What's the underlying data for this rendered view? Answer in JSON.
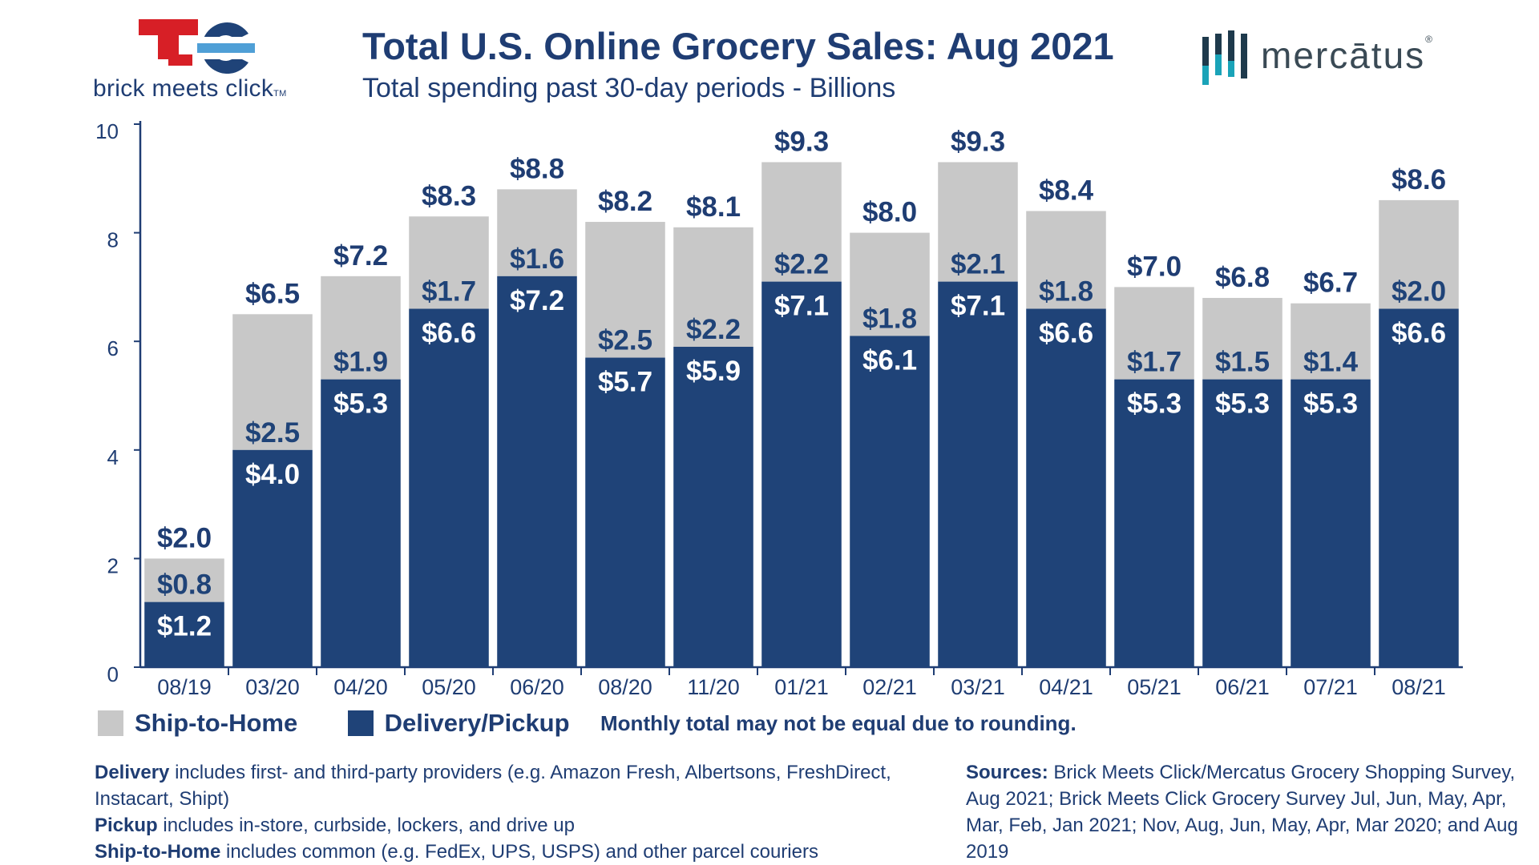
{
  "header": {
    "title": "Total U.S. Online Grocery Sales: Aug 2021",
    "subtitle": "Total spending past 30-day periods - Billions"
  },
  "logos": {
    "left_brand": "brick meets click",
    "left_brand_tm": "TM",
    "right_brand": "mercātus",
    "right_brand_reg": "®"
  },
  "colors": {
    "delivery_pickup": "#1f4378",
    "ship_to_home": "#c8c8c8",
    "text": "#1f3d73",
    "accent_red": "#d71f26"
  },
  "chart_data": {
    "type": "bar",
    "stacked": true,
    "categories": [
      "08/19",
      "03/20",
      "04/20",
      "05/20",
      "06/20",
      "08/20",
      "11/20",
      "01/21",
      "02/21",
      "03/21",
      "04/21",
      "05/21",
      "06/21",
      "07/21",
      "08/21"
    ],
    "series": [
      {
        "name": "Delivery/Pickup",
        "values": [
          1.2,
          4.0,
          5.3,
          6.6,
          7.2,
          5.7,
          5.9,
          7.1,
          6.1,
          7.1,
          6.6,
          5.3,
          5.3,
          5.3,
          6.6
        ],
        "labels": [
          "$1.2",
          "$4.0",
          "$5.3",
          "$6.6",
          "$7.2",
          "$5.7",
          "$5.9",
          "$7.1",
          "$6.1",
          "$7.1",
          "$6.6",
          "$5.3",
          "$5.3",
          "$5.3",
          "$6.6"
        ]
      },
      {
        "name": "Ship-to-Home",
        "values": [
          0.8,
          2.5,
          1.9,
          1.7,
          1.6,
          2.5,
          2.2,
          2.2,
          1.8,
          2.1,
          1.8,
          1.7,
          1.5,
          1.4,
          2.0
        ],
        "labels": [
          "$0.8",
          "$2.5",
          "$1.9",
          "$1.7",
          "$1.6",
          "$2.5",
          "$2.2",
          "$2.2",
          "$1.8",
          "$2.1",
          "$1.8",
          "$1.7",
          "$1.5",
          "$1.4",
          "$2.0"
        ]
      }
    ],
    "totals": [
      2.0,
      6.5,
      7.2,
      8.3,
      8.8,
      8.2,
      8.1,
      9.3,
      8.0,
      9.3,
      8.4,
      7.0,
      6.8,
      6.7,
      8.6
    ],
    "total_labels": [
      "$2.0",
      "$6.5",
      "$7.2",
      "$8.3",
      "$8.8",
      "$8.2",
      "$8.1",
      "$9.3",
      "$8.0",
      "$9.3",
      "$8.4",
      "$7.0",
      "$6.8",
      "$6.7",
      "$8.6"
    ],
    "yticks": [
      "0",
      "2",
      "4",
      "6",
      "8",
      "10"
    ],
    "ylim": [
      0,
      10
    ],
    "grid": false,
    "legend_position": "bottom-left"
  },
  "legend": {
    "ship_to_home": "Ship-to-Home",
    "delivery_pickup": "Delivery/Pickup",
    "note": "Monthly total may not be equal due to rounding."
  },
  "footnotes": {
    "definitions": [
      {
        "term": "Delivery",
        "text": " includes first- and third-party providers (e.g. Amazon Fresh, Albertsons, FreshDirect, Instacart, Shipt)"
      },
      {
        "term": "Pickup",
        "text": " includes in-store, curbside, lockers, and drive up"
      },
      {
        "term": "Ship-to-Home",
        "text": " includes common (e.g. FedEx, UPS, USPS) and other parcel couriers"
      }
    ],
    "sources_label": "Sources:",
    "sources_text": " Brick Meets Click/Mercatus Grocery Shopping Survey, Aug 2021; Brick Meets Click Grocery Survey Jul, Jun, May, Apr, Mar, Feb, Jan 2021; Nov, Aug, Jun, May, Apr, Mar 2020; and Aug 2019"
  }
}
